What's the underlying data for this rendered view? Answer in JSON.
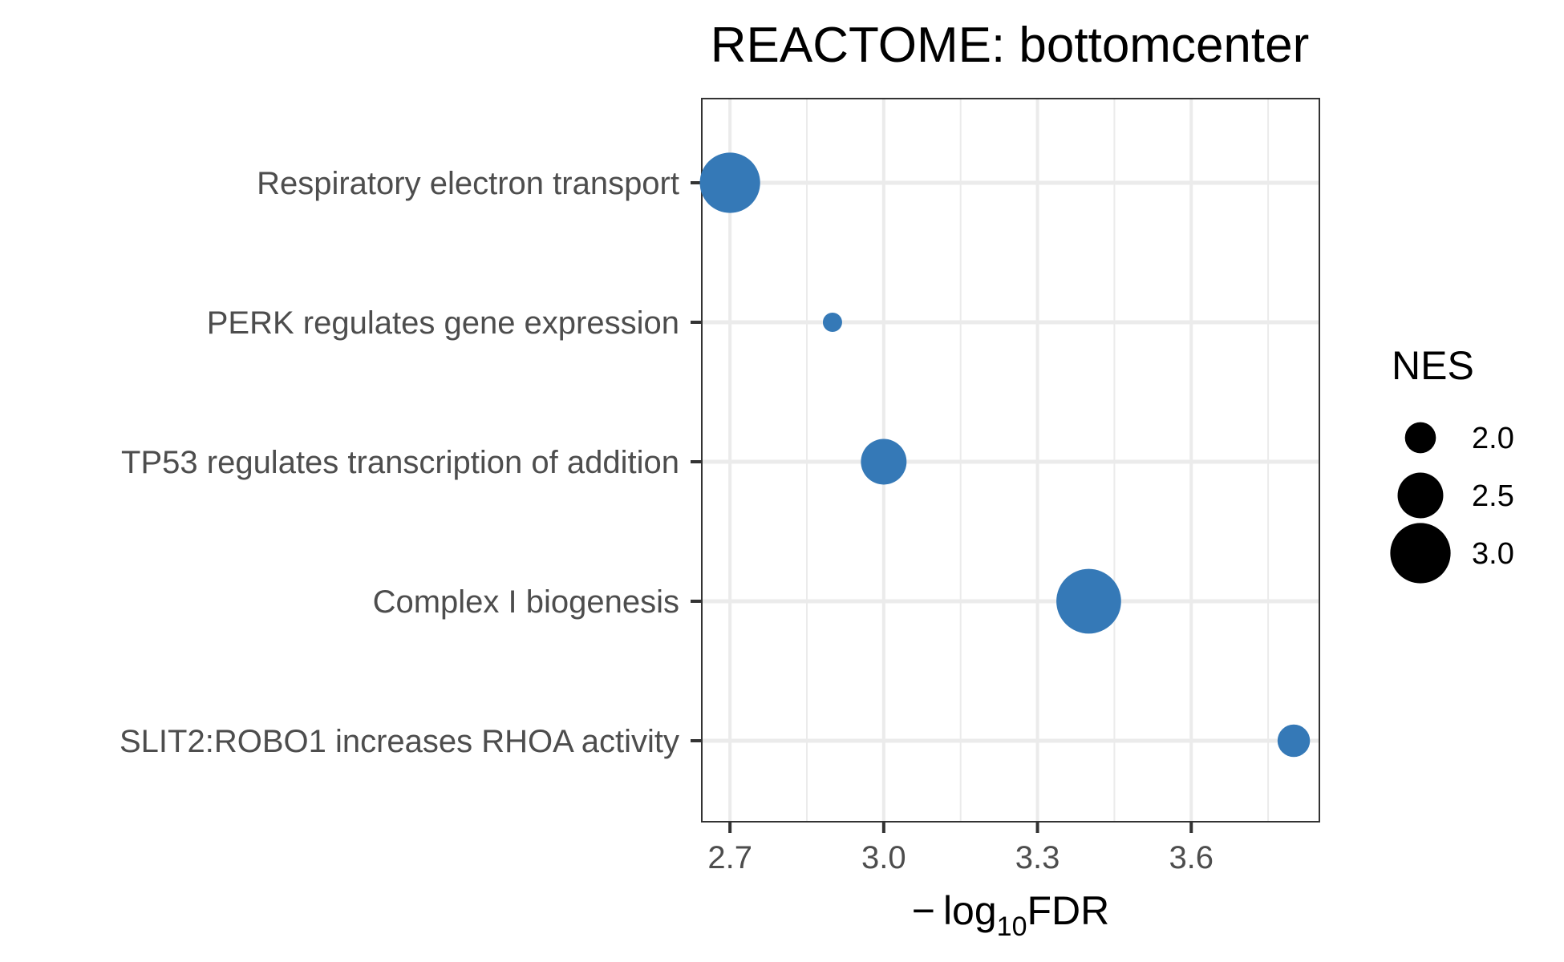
{
  "chart_data": {
    "type": "scatter",
    "title": "REACTOME: bottomcenter",
    "xlabel_prefix": "−",
    "xlabel_log": "log",
    "xlabel_sub": "10",
    "xlabel_rest": "FDR",
    "ylabel": "",
    "xlim": [
      2.645,
      3.85
    ],
    "x_ticks": [
      2.7,
      3.0,
      3.3,
      3.6
    ],
    "x_tick_labels": [
      "2.7",
      "3.0",
      "3.3",
      "3.6"
    ],
    "categories": [
      "Respiratory electron transport",
      "PERK regulates gene expression",
      "TP53 regulates transcription of addition",
      "Complex I biogenesis",
      "SLIT2:ROBO1 increases RHOA activity"
    ],
    "points": [
      {
        "pathway": "Respiratory electron transport",
        "x": 2.7,
        "nes": 3.0
      },
      {
        "pathway": "PERK regulates gene expression",
        "x": 2.9,
        "nes": 1.6
      },
      {
        "pathway": "TP53 regulates transcription of addition",
        "x": 3.0,
        "nes": 2.5
      },
      {
        "pathway": "Complex I biogenesis",
        "x": 3.4,
        "nes": 3.15
      },
      {
        "pathway": "SLIT2:ROBO1 increases RHOA activity",
        "x": 3.8,
        "nes": 2.05
      }
    ],
    "size_legend": {
      "title": "NES",
      "values": [
        2.0,
        2.5,
        3.0
      ],
      "labels": [
        "2.0",
        "2.5",
        "3.0"
      ]
    },
    "grid": true,
    "legend_position": "right",
    "point_color": "#3579b7",
    "legend_color": "#000000"
  }
}
